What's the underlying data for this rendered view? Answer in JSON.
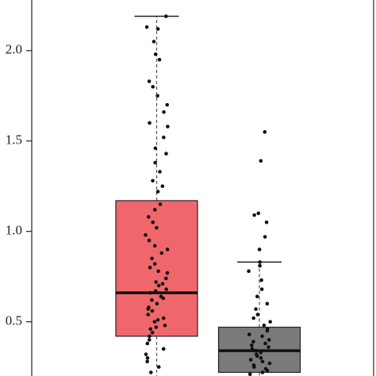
{
  "chart_data": {
    "type": "box",
    "ylim": [
      0.2,
      2.28
    ],
    "yticks": [
      0.5,
      {
        "value": 1,
        "label": "1.0"
      },
      1.5,
      {
        "value": 2,
        "label": "2.0"
      }
    ],
    "boxes": [
      {
        "color": "#f0676b",
        "q1": 0.42,
        "median": 0.66,
        "q3": 1.17,
        "whisker_high": 2.19,
        "points": [
          2.19,
          2.13,
          2.12,
          2.05,
          1.98,
          1.95,
          1.83,
          1.8,
          1.75,
          1.7,
          1.66,
          1.6,
          1.58,
          1.52,
          1.46,
          1.43,
          1.38,
          1.33,
          1.28,
          1.25,
          1.22,
          1.15,
          1.12,
          1.08,
          1.05,
          1.02,
          0.98,
          0.95,
          0.92,
          0.9,
          0.88,
          0.85,
          0.82,
          0.8,
          0.78,
          0.77,
          0.74,
          0.72,
          0.71,
          0.7,
          0.68,
          0.67,
          0.66,
          0.64,
          0.63,
          0.62,
          0.6,
          0.58,
          0.57,
          0.56,
          0.54,
          0.52,
          0.51,
          0.5,
          0.48,
          0.47,
          0.46,
          0.44,
          0.42,
          0.4,
          0.38,
          0.35,
          0.32,
          0.3,
          0.28,
          0.25,
          0.22
        ]
      },
      {
        "color": "#7a7a7a",
        "q1": 0.22,
        "median": 0.34,
        "q3": 0.47,
        "whisker_high": 0.83,
        "points": [
          1.55,
          1.39,
          1.1,
          1.09,
          1.05,
          0.97,
          0.9,
          0.83,
          0.81,
          0.78,
          0.73,
          0.68,
          0.64,
          0.6,
          0.57,
          0.54,
          0.52,
          0.5,
          0.48,
          0.46,
          0.45,
          0.43,
          0.42,
          0.4,
          0.39,
          0.38,
          0.37,
          0.36,
          0.35,
          0.34,
          0.33,
          0.32,
          0.31,
          0.3,
          0.29,
          0.28,
          0.27,
          0.26,
          0.25,
          0.24,
          0.23,
          0.22,
          0.21
        ]
      }
    ]
  }
}
